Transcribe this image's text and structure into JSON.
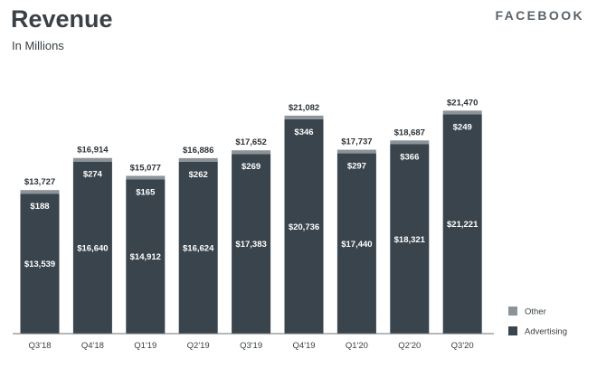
{
  "header": {
    "title": "Revenue",
    "subtitle": "In Millions",
    "brand": "FACEBOOK"
  },
  "colors": {
    "advertising": "#39444c",
    "other": "#8d9499",
    "axis": "#6b7378"
  },
  "legend": {
    "placement": "bottom-right",
    "items": [
      {
        "label": "Other",
        "color": "#8d9499"
      },
      {
        "label": "Advertising",
        "color": "#39444c"
      }
    ]
  },
  "chart_data": {
    "type": "bar",
    "stacked": true,
    "title": "Revenue",
    "subtitle": "In Millions",
    "xlabel": "",
    "ylabel": "",
    "ylim": [
      0,
      23000
    ],
    "grid": false,
    "categories": [
      "Q3'18",
      "Q4'18",
      "Q1'19",
      "Q2'19",
      "Q3'19",
      "Q4'19",
      "Q1'20",
      "Q2'20",
      "Q3'20"
    ],
    "series": [
      {
        "name": "Advertising",
        "values": [
          13539,
          16640,
          14912,
          16624,
          17383,
          20736,
          17440,
          18321,
          21221
        ]
      },
      {
        "name": "Other",
        "values": [
          188,
          274,
          165,
          262,
          269,
          346,
          297,
          366,
          249
        ]
      }
    ],
    "totals": [
      13727,
      16914,
      15077,
      16886,
      17652,
      21082,
      17737,
      18687,
      21470
    ],
    "total_labels": [
      "$13,727",
      "$16,914",
      "$15,077",
      "$16,886",
      "$17,652",
      "$21,082",
      "$17,737",
      "$18,687",
      "$21,470"
    ],
    "advertising_labels": [
      "$13,539",
      "$16,640",
      "$14,912",
      "$16,624",
      "$17,383",
      "$20,736",
      "$17,440",
      "$18,321",
      "$21,221"
    ],
    "other_labels": [
      "$188",
      "$274",
      "$165",
      "$262",
      "$269",
      "$346",
      "$297",
      "$366",
      "$249"
    ]
  }
}
